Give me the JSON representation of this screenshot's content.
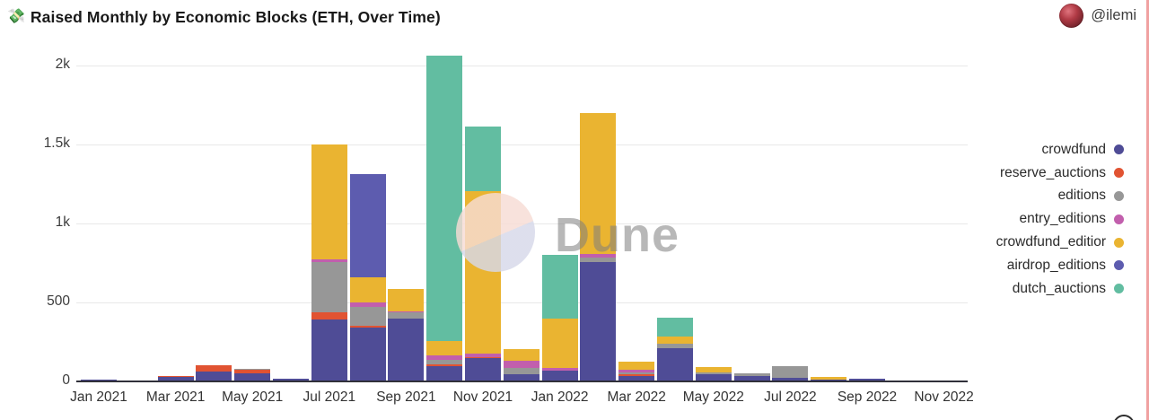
{
  "header": {
    "title_emoji": "💸",
    "title": "Raised Monthly by Economic Blocks (ETH, Over Time)",
    "author": "@ilemi"
  },
  "watermark": {
    "text": "Dune"
  },
  "colors": {
    "accent_border": "#f0a1a1",
    "axis_line": "#30303a",
    "gridline": "#e8e8e8"
  },
  "chart_data": {
    "type": "bar",
    "stacked": true,
    "unit": "ETH",
    "title": "Raised Monthly by Economic Blocks (ETH, Over Time)",
    "xlabel": "",
    "ylabel": "",
    "grid": "horizontal",
    "legend_position": "right",
    "ylim": [
      0,
      2065
    ],
    "y_ticks": [
      {
        "label": "0",
        "value": 0
      },
      {
        "label": "500",
        "value": 500
      },
      {
        "label": "1k",
        "value": 1000
      },
      {
        "label": "1.5k",
        "value": 1500
      },
      {
        "label": "2k",
        "value": 2000
      }
    ],
    "x": [
      "Jan 2021",
      "Feb 2021",
      "Mar 2021",
      "Apr 2021",
      "May 2021",
      "Jun 2021",
      "Jul 2021",
      "Aug 2021",
      "Sep 2021",
      "Oct 2021",
      "Nov 2021",
      "Dec 2021",
      "Jan 2022",
      "Feb 2022",
      "Mar 2022",
      "Apr 2022",
      "May 2022",
      "Jun 2022",
      "Jul 2022",
      "Aug 2022",
      "Sep 2022",
      "Oct 2022",
      "Nov 2022",
      "Dec 2022"
    ],
    "x_tick_labels": [
      "Jan 2021",
      "Mar 2021",
      "May 2021",
      "Jul 2021",
      "Sep 2021",
      "Nov 2021",
      "Jan 2022",
      "Mar 2022",
      "May 2022",
      "Jul 2022",
      "Sep 2022",
      "Nov 2022"
    ],
    "series": [
      {
        "name": "crowdfund",
        "color": "#4f4c96",
        "values": [
          10,
          4,
          26,
          62,
          50,
          18,
          390,
          340,
          395,
          95,
          145,
          44,
          70,
          758,
          34,
          212,
          44,
          34,
          25,
          13,
          17,
          0,
          0,
          0
        ]
      },
      {
        "name": "reserve_auctions",
        "color": "#e15332",
        "values": [
          0,
          0,
          8,
          41,
          25,
          0,
          45,
          13,
          0,
          13,
          8,
          0,
          0,
          0,
          10,
          0,
          0,
          0,
          0,
          0,
          0,
          0,
          0,
          0
        ]
      },
      {
        "name": "editions",
        "color": "#979797",
        "values": [
          0,
          0,
          0,
          0,
          5,
          0,
          320,
          120,
          40,
          30,
          0,
          40,
          0,
          28,
          15,
          25,
          13,
          17,
          70,
          0,
          0,
          0,
          0,
          0
        ]
      },
      {
        "name": "entry_editions",
        "color": "#c25fad",
        "values": [
          0,
          0,
          0,
          0,
          0,
          0,
          15,
          28,
          10,
          27,
          25,
          45,
          15,
          19,
          17,
          0,
          0,
          0,
          0,
          0,
          0,
          0,
          0,
          0
        ]
      },
      {
        "name": "crowdfund_editior",
        "color": "#eab431",
        "values": [
          0,
          0,
          0,
          0,
          0,
          0,
          730,
          160,
          140,
          90,
          1025,
          76,
          310,
          895,
          49,
          47,
          34,
          0,
          0,
          15,
          0,
          0,
          0,
          0
        ]
      },
      {
        "name": "airdrop_editions",
        "color": "#5d5caf",
        "values": [
          0,
          0,
          0,
          0,
          0,
          0,
          0,
          650,
          0,
          0,
          0,
          0,
          0,
          0,
          0,
          0,
          0,
          0,
          0,
          0,
          0,
          0,
          0,
          0
        ]
      },
      {
        "name": "dutch_auctions",
        "color": "#62bda1",
        "values": [
          0,
          0,
          0,
          0,
          0,
          0,
          0,
          0,
          0,
          1810,
          410,
          0,
          405,
          0,
          0,
          119,
          0,
          0,
          0,
          0,
          0,
          0,
          0,
          0
        ]
      }
    ]
  }
}
